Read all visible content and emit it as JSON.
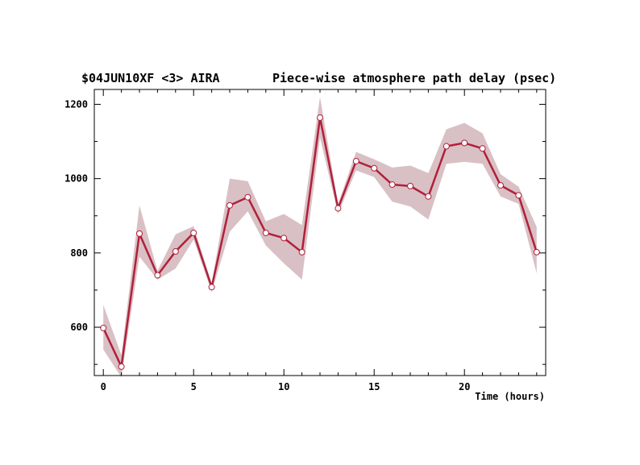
{
  "chart_data": {
    "type": "line",
    "title_left": "$04JUN10XF <3>  AIRA",
    "title_right": "Piece-wise atmosphere path delay (psec)",
    "xlabel": "Time (hours)",
    "ylabel": "",
    "xlim": [
      -0.5,
      24.5
    ],
    "ylim": [
      470,
      1240
    ],
    "x_ticks": [
      0,
      5,
      10,
      15,
      20
    ],
    "y_ticks": [
      600,
      800,
      1000,
      1200
    ],
    "grid": false,
    "series": [
      {
        "x": [
          0,
          1,
          2,
          3,
          4,
          5,
          6,
          7,
          8,
          9,
          10,
          11,
          12,
          13,
          14,
          15,
          16,
          17,
          18,
          19,
          20,
          21,
          22,
          23,
          24
        ],
        "values": [
          598,
          494,
          852,
          740,
          804,
          854,
          708,
          928,
          950,
          854,
          840,
          802,
          1164,
          920,
          1047,
          1028,
          984,
          980,
          952,
          1087,
          1096,
          1081,
          982,
          955,
          802
        ],
        "upper": [
          660,
          525,
          928,
          752,
          850,
          872,
          718,
          1000,
          993,
          885,
          905,
          875,
          1220,
          932,
          1072,
          1052,
          1030,
          1035,
          1015,
          1133,
          1150,
          1122,
          1012,
          978,
          870
        ],
        "lower": [
          540,
          465,
          790,
          728,
          758,
          836,
          695,
          857,
          912,
          820,
          772,
          728,
          1110,
          905,
          1022,
          1004,
          938,
          925,
          890,
          1040,
          1045,
          1040,
          952,
          932,
          745
        ]
      }
    ],
    "colors": {
      "line": "#b0203a",
      "band": "#d9c0c5",
      "marker_fill": "#ffffff",
      "marker_stroke": "#b0203a"
    }
  }
}
